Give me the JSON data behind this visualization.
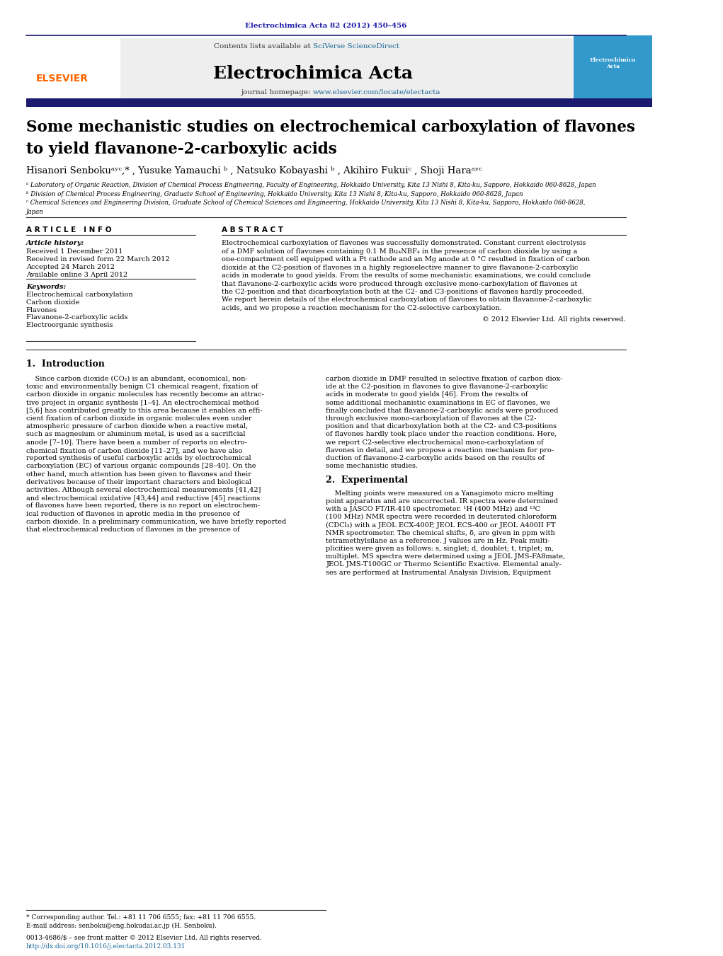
{
  "page_width": 10.21,
  "page_height": 13.51,
  "bg_color": "#ffffff",
  "header_journal_ref": "Electrochimica Acta 82 (2012) 450–456",
  "header_journal_ref_color": "#1a1aaa",
  "contents_text": "Contents lists available at ",
  "sciverse_text": "SciVerse ScienceDirect",
  "sciverse_color": "#1a6699",
  "journal_name": "Electrochimica Acta",
  "journal_homepage_text": "journal homepage: ",
  "journal_url": "www.elsevier.com/locate/electacta",
  "journal_url_color": "#1a6699",
  "header_bar_color": "#1a1a6e",
  "elsevier_color": "#ff6600",
  "paper_title_line1": "Some mechanistic studies on electrochemical carboxylation of flavones",
  "paper_title_line2": "to yield flavanone-2-carboxylic acids",
  "title_color": "#000000",
  "authors": "Hisanori Senbokuᵃʸᶜ,* , Yusuke Yamauchi ᵇ , Natsuko Kobayashi ᵇ , Akihiro Fukuiᶜ , Shoji Haraᵃʸᶜ",
  "affil_a": "ᵃ Laboratory of Organic Reaction, Division of Chemical Process Engineering, Faculty of Engineering, Hokkaido University, Kita 13 Nishi 8, Kita-ku, Sapporo, Hokkaido 060-8628, Japan",
  "affil_b": "ᵇ Division of Chemical Process Engineering, Graduate School of Engineering, Hokkaido University, Kita 13 Nishi 8, Kita-ku, Sapporo, Hokkaido 060-8628, Japan",
  "affil_c1": "ᶜ Chemical Sciences and Engineering Division, Graduate School of Chemical Sciences and Engineering, Hokkaido University, Kita 13 Nishi 8, Kita-ku, Sapporo, Hokkaido 060-8628,",
  "affil_c2": "Japan",
  "article_info_header": "A R T I C L E   I N F O",
  "abstract_header": "A B S T R A C T",
  "article_history_label": "Article history:",
  "received": "Received 1 December 2011",
  "received_revised": "Received in revised form 22 March 2012",
  "accepted": "Accepted 24 March 2012",
  "available": "Available online 3 April 2012",
  "keywords_label": "Keywords:",
  "keyword1": "Electrochemical carboxylation",
  "keyword2": "Carbon dioxide",
  "keyword3": "Flavones",
  "keyword4": "Flavanone-2-carboxylic acids",
  "keyword5": "Electroorganic synthesis",
  "copyright_text": "© 2012 Elsevier Ltd. All rights reserved.",
  "intro_header": "1.  Introduction",
  "section2_header": "2.  Experimental",
  "footnote_star": "* Corresponding author. Tel.: +81 11 706 6555; fax: +81 11 706 6555.",
  "footnote_email": "E-mail address: senboku@eng.hokudai.ac.jp (H. Senboku).",
  "footnote_issn": "0013-4686/$ – see front matter © 2012 Elsevier Ltd. All rights reserved.",
  "footnote_doi": "http://dx.doi.org/10.1016/j.electacta.2012.03.131",
  "link_color": "#1a6699",
  "abstract_lines": [
    "Electrochemical carboxylation of flavones was successfully demonstrated. Constant current electrolysis",
    "of a DMF solution of flavones containing 0.1 M Bu₄NBF₄ in the presence of carbon dioxide by using a",
    "one-compartment cell equipped with a Pt cathode and an Mg anode at 0 °C resulted in fixation of carbon",
    "dioxide at the C2-position of flavones in a highly regioselective manner to give flavanone-2-carboxylic",
    "acids in moderate to good yields. From the results of some mechanistic examinations, we could conclude",
    "that flavanone-2-carboxylic acids were produced through exclusive mono-carboxylation of flavones at",
    "the C2-position and that dicarboxylation both at the C2- and C3-positions of flavones hardly proceeded.",
    "We report herein details of the electrochemical carboxylation of flavones to obtain flavanone-2-carboxylic",
    "acids, and we propose a reaction mechanism for the C2-selective carboxylation."
  ],
  "intro_col1_lines": [
    "    Since carbon dioxide (CO₂) is an abundant, economical, non-",
    "toxic and environmentally benign C1 chemical reagent, fixation of",
    "carbon dioxide in organic molecules has recently become an attrac-",
    "tive project in organic synthesis [1–4]. An electrochemical method",
    "[5,6] has contributed greatly to this area because it enables an effi-",
    "cient fixation of carbon dioxide in organic molecules even under",
    "atmospheric pressure of carbon dioxide when a reactive metal,",
    "such as magnesium or aluminum metal, is used as a sacrificial",
    "anode [7–10]. There have been a number of reports on electro-",
    "chemical fixation of carbon dioxide [11–27], and we have also",
    "reported synthesis of useful carboxylic acids by electrochemical",
    "carboxylation (EC) of various organic compounds [28–40]. On the",
    "other hand, much attention has been given to flavones and their",
    "derivatives because of their important characters and biological",
    "activities. Although several electrochemical measurements [41,42]",
    "and electrochemical oxidative [43,44] and reductive [45] reactions",
    "of flavones have been reported, there is no report on electrochem-",
    "ical reduction of flavones in aprotic media in the presence of",
    "carbon dioxide. In a preliminary communication, we have briefly reported",
    "that electrochemical reduction of flavones in the presence of"
  ],
  "intro_col2_lines": [
    "carbon dioxide in DMF resulted in selective fixation of carbon diox-",
    "ide at the C2-position in flavones to give flavanone-2-carboxylic",
    "acids in moderate to good yields [46]. From the results of",
    "some additional mechanistic examinations in EC of flavones, we",
    "finally concluded that flavanone-2-carboxylic acids were produced",
    "through exclusive mono-carboxylation of flavones at the C2-",
    "position and that dicarboxylation both at the C2- and C3-positions",
    "of flavones hardly took place under the reaction conditions. Here,",
    "we report C2-selective electrochemical mono-carboxylation of",
    "flavones in detail, and we propose a reaction mechanism for pro-",
    "duction of flavanone-2-carboxylic acids based on the results of",
    "some mechanistic studies."
  ],
  "sec2_col2_lines": [
    "    Melting points were measured on a Yanagimoto micro melting",
    "point apparatus and are uncorrected. IR spectra were determined",
    "with a JASCO FT/IR-410 spectrometer. ¹H (400 MHz) and ¹³C",
    "(100 MHz) NMR spectra were recorded in deuterated chloroform",
    "(CDCl₃) with a JEOL ECX-400P, JEOL ECS-400 or JEOL A400II FT",
    "NMR spectrometer. The chemical shifts, δ, are given in ppm with",
    "tetramethylsilane as a reference. J values are in Hz. Peak multi-",
    "plicities were given as follows: s, singlet; d, doublet; t, triplet; m,",
    "multiplet. MS spectra were determined using a JEOL JMS-FA8mate,",
    "JEOL JMS-T100GC or Thermo Scientific Exactive. Elemental analy-",
    "ses are performed at Instrumental Analysis Division, Equipment"
  ]
}
